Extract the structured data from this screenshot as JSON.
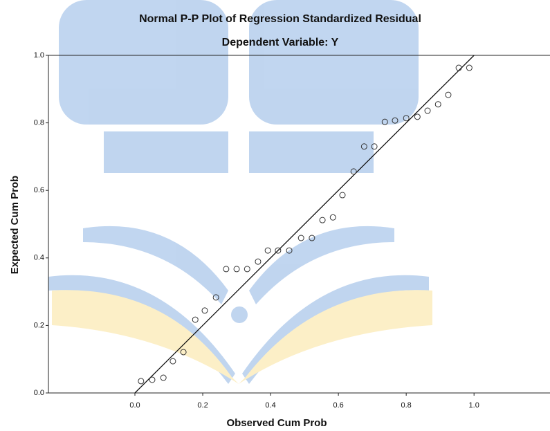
{
  "chart_data": {
    "type": "scatter",
    "title": "Normal P-P Plot of Regression Standardized Residual",
    "subtitle": "Dependent Variable: Y",
    "x_label": "Observed Cum Prob",
    "y_label": "Expected Cum Prob",
    "xlim": [
      -0.255,
      1.224
    ],
    "ylim": [
      0,
      1
    ],
    "xticks": [
      {
        "value": 0,
        "label": "0.0"
      },
      0.2,
      0.4,
      0.6,
      0.8,
      {
        "value": 1,
        "label": "1.0"
      }
    ],
    "yticks": [
      {
        "value": 0,
        "label": "0.0"
      },
      0.2,
      0.4,
      0.6,
      0.8,
      {
        "value": 1,
        "label": "1.0"
      }
    ],
    "grid": false,
    "color": "#333333",
    "x": [
      0.018,
      0.051,
      0.084,
      0.112,
      0.143,
      0.178,
      0.206,
      0.239,
      0.269,
      0.3,
      0.331,
      0.363,
      0.392,
      0.422,
      0.455,
      0.49,
      0.522,
      0.553,
      0.584,
      0.612,
      0.645,
      0.676,
      0.706,
      0.737,
      0.767,
      0.8,
      0.833,
      0.863,
      0.894,
      0.924,
      0.955,
      0.986
    ],
    "values": [
      0.035,
      0.039,
      0.045,
      0.094,
      0.121,
      0.217,
      0.244,
      0.283,
      0.367,
      0.367,
      0.367,
      0.389,
      0.422,
      0.422,
      0.422,
      0.459,
      0.459,
      0.512,
      0.52,
      0.586,
      0.656,
      0.73,
      0.73,
      0.803,
      0.807,
      0.814,
      0.818,
      0.836,
      0.855,
      0.883,
      0.963,
      0.963
    ]
  }
}
